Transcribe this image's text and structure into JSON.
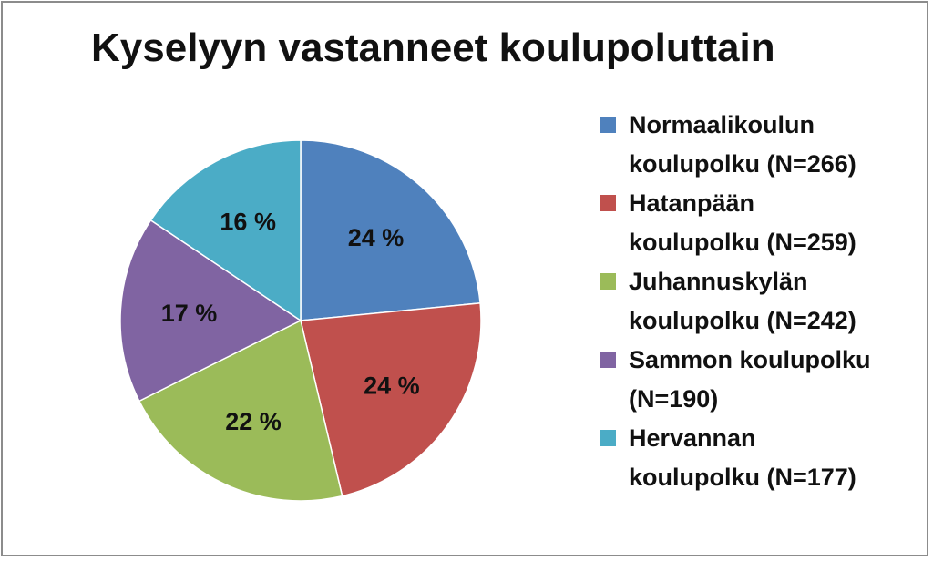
{
  "chart_data": {
    "type": "pie",
    "title": "Kyselyyn vastanneet koulupoluttain",
    "slices": [
      {
        "label": "Normaalikoulun\nkoulupolku (N=266)",
        "value": 266,
        "percent_label": "24 %",
        "color": "#4f81bd"
      },
      {
        "label": "Hatanpään\nkoulupolku (N=259)",
        "value": 259,
        "percent_label": "24 %",
        "color": "#c0504d"
      },
      {
        "label": "Juhannuskylän\nkoulupolku (N=242)",
        "value": 242,
        "percent_label": "22 %",
        "color": "#9bbb59"
      },
      {
        "label": "Sammon koulupolku\n(N=190)",
        "value": 190,
        "percent_label": "17 %",
        "color": "#8064a2"
      },
      {
        "label": "Hervannan\nkoulupolku (N=177)",
        "value": 177,
        "percent_label": "16 %",
        "color": "#4bacc6"
      }
    ],
    "legend_position": "right"
  }
}
